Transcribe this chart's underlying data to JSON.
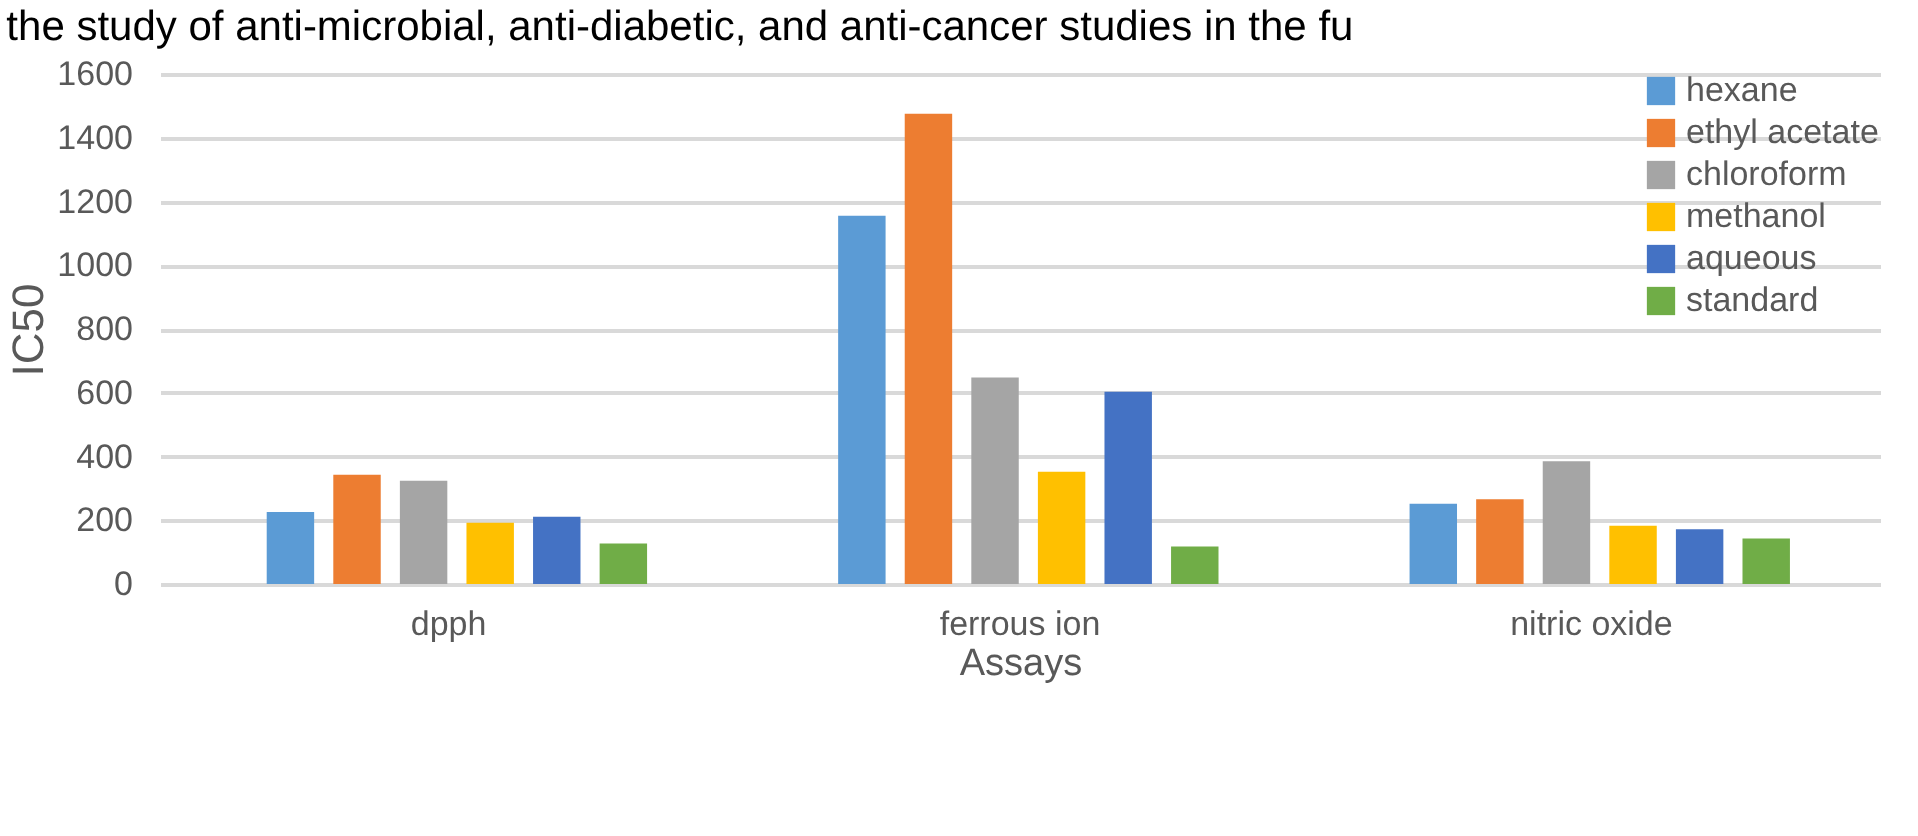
{
  "chart_data": {
    "type": "bar",
    "xlabel": "Assays",
    "ylabel": "IC50",
    "annotations": [
      "the study of anti-microbial, anti-diabetic, and anti-cancer studies in the fu"
    ],
    "categories": [
      "dpph",
      "ferrous ion",
      "nitric oxide"
    ],
    "series": [
      {
        "name": "hexane",
        "color": "#5b9bd5",
        "values": [
          226,
          1155,
          252
        ]
      },
      {
        "name": "ethyl acetate",
        "color": "#ed7d31",
        "values": [
          343,
          1475,
          266
        ]
      },
      {
        "name": "chloroform",
        "color": "#a5a5a5",
        "values": [
          324,
          648,
          385
        ]
      },
      {
        "name": "methanol",
        "color": "#ffc000",
        "values": [
          192,
          352,
          183
        ]
      },
      {
        "name": "aqueous",
        "color": "#4472c4",
        "values": [
          211,
          603,
          172
        ]
      },
      {
        "name": "standard",
        "color": "#70ad47",
        "values": [
          127,
          118,
          143
        ]
      }
    ],
    "ylim": [
      0,
      1600
    ],
    "yticks": [
      0,
      200,
      400,
      600,
      800,
      1000,
      1200,
      1400,
      1600
    ],
    "grid": "y",
    "legend": "top right"
  }
}
